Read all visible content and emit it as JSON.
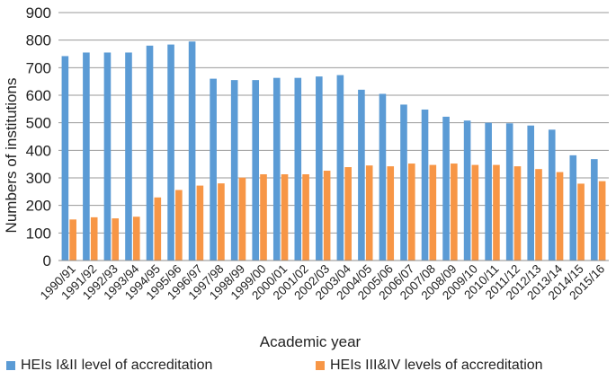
{
  "chart_data": {
    "type": "bar",
    "title": "",
    "xlabel": "Academic year",
    "ylabel": "Numbers of institutions",
    "ylim": [
      0,
      900
    ],
    "yticks": [
      0,
      100,
      200,
      300,
      400,
      500,
      600,
      700,
      800,
      900
    ],
    "grid": true,
    "legend_position": "bottom",
    "categories": [
      "1990/91",
      "1991/92",
      "1992/93",
      "1993/94",
      "1994/95",
      "1995/96",
      "1996/97",
      "1997/98",
      "1998/99",
      "1999/00",
      "2000/01",
      "2001/02",
      "2002/03",
      "2003/04",
      "2004/05",
      "2005/06",
      "2006/07",
      "2007/08",
      "2008/09",
      "2009/10",
      "2010/11",
      "2011/12",
      "2012/13",
      "2013/14",
      "2014/15",
      "2015/16"
    ],
    "series": [
      {
        "name": "HEIs I&II level of accreditation",
        "color": "#5b9bd5",
        "values": [
          742,
          755,
          755,
          755,
          780,
          784,
          795,
          660,
          655,
          655,
          663,
          663,
          668,
          673,
          620,
          605,
          566,
          548,
          522,
          508,
          500,
          498,
          490,
          475,
          382,
          368
        ]
      },
      {
        "name": "HEIs III&IV levels of accreditation",
        "color": "#f79646",
        "values": [
          149,
          157,
          153,
          159,
          229,
          256,
          272,
          280,
          301,
          313,
          313,
          313,
          326,
          339,
          345,
          342,
          352,
          347,
          352,
          347,
          347,
          342,
          332,
          321,
          279,
          288
        ]
      }
    ]
  }
}
